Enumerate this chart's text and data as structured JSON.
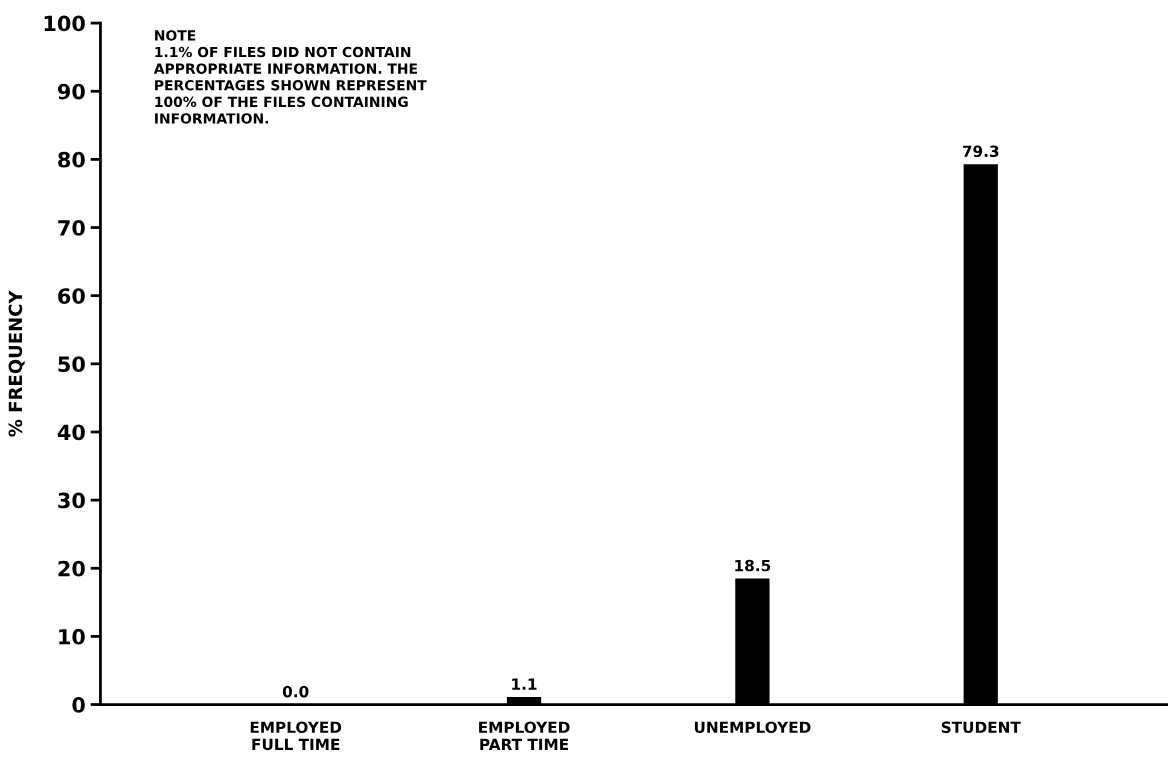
{
  "chart_data": {
    "type": "bar",
    "ylabel": "% FREQUENCY",
    "categories": [
      "EMPLOYED\nFULL TIME",
      "EMPLOYED\nPART TIME",
      "UNEMPLOYED",
      "STUDENT"
    ],
    "values": [
      0.0,
      1.1,
      18.5,
      79.3
    ],
    "color": "#000000",
    "ylim": [
      0,
      100
    ],
    "yticks": [
      0,
      10,
      20,
      30,
      40,
      50,
      60,
      70,
      80,
      90,
      100
    ],
    "value_labels": [
      "0.0",
      "1.1",
      "18.5",
      "79.3"
    ],
    "grid": false,
    "annotations": [
      "NOTE\n1.1% OF FILES DID NOT CONTAIN\nAPPROPRIATE INFORMATION. THE\nPERCENTAGES SHOWN REPRESENT\n100% OF THE FILES CONTAINING\nINFORMATION."
    ]
  }
}
